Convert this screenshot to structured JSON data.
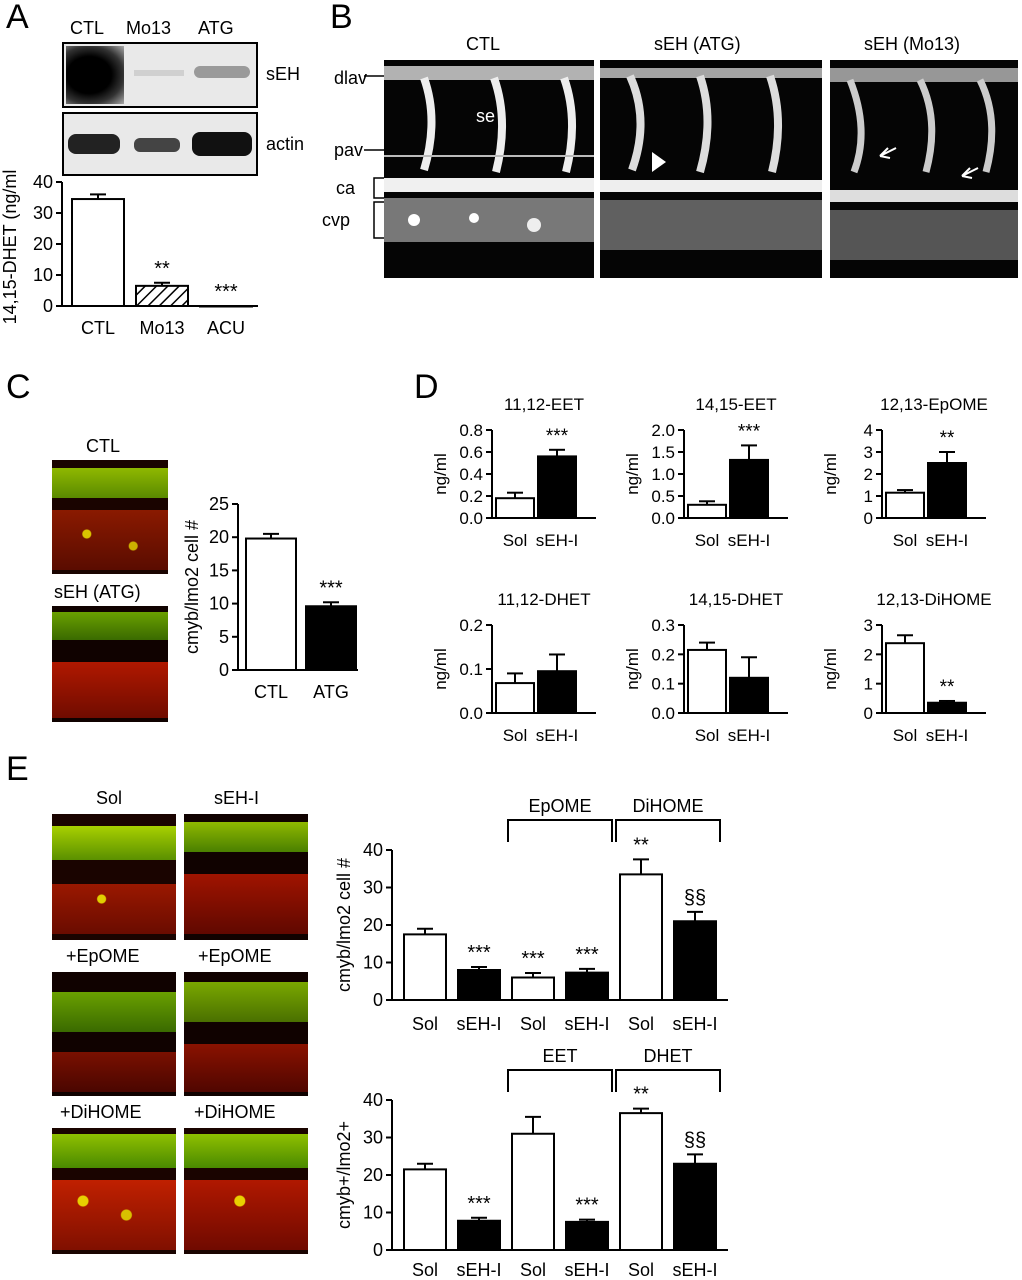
{
  "panels": {
    "a": "A",
    "b": "B",
    "c": "C",
    "d": "D",
    "e": "E"
  },
  "panelA": {
    "lanes": [
      "CTL",
      "Mo13",
      "ATG"
    ],
    "bands": [
      "sEH",
      "actin"
    ],
    "chart": {
      "categories": [
        "CTL",
        "Mo13",
        "ACU"
      ],
      "values": [
        34.5,
        6.5,
        0.0
      ],
      "errors": [
        1.5,
        1.0,
        0
      ],
      "sig": [
        "",
        "**",
        "***"
      ],
      "ylabel": "14,15-DHET (ng/ml)",
      "ylim": [
        0,
        40
      ],
      "ticks": [
        0,
        10,
        20,
        30,
        40
      ]
    }
  },
  "panelB": {
    "titles": [
      "CTL",
      "sEH (ATG)",
      "sEH (Mo13)"
    ],
    "labels": [
      "dlav",
      "pav",
      "ca",
      "cvp"
    ],
    "inner": "se"
  },
  "panelC": {
    "images": [
      "CTL",
      "sEH (ATG)"
    ],
    "chart": {
      "categories": [
        "CTL",
        "ATG"
      ],
      "values": [
        19.8,
        9.6
      ],
      "errors": [
        0.7,
        0.6
      ],
      "fills": [
        "white",
        "black"
      ],
      "sig": [
        "",
        "***"
      ],
      "ylabel": "cmyb/lmo2 cell #",
      "ylim": [
        0,
        25
      ],
      "ticks": [
        0,
        5,
        10,
        15,
        20,
        25
      ]
    }
  },
  "panelE": {
    "images": [
      "Sol",
      "sEH-I",
      "+EpOME",
      "+EpOME",
      "+DiHOME",
      "+DiHOME"
    ]
  },
  "chart_data": [
    {
      "type": "bar",
      "id": "A",
      "title": "",
      "ylabel": "14,15-DHET (ng/ml)",
      "categories": [
        "CTL",
        "Mo13",
        "ACU"
      ],
      "values": [
        34.5,
        6.5,
        0.0
      ],
      "ylim": [
        0,
        40
      ]
    },
    {
      "type": "bar",
      "id": "C",
      "ylabel": "cmyb/lmo2 cell #",
      "categories": [
        "CTL",
        "ATG"
      ],
      "values": [
        19.8,
        9.6
      ],
      "ylim": [
        0,
        25
      ]
    },
    {
      "type": "bar",
      "id": "D1",
      "title": "11,12-EET",
      "ylabel": "ng/ml",
      "categories": [
        "Sol",
        "sEH-I"
      ],
      "values": [
        0.18,
        0.56
      ],
      "errors": [
        0.05,
        0.06
      ],
      "fills": [
        "white",
        "black"
      ],
      "sig": [
        "",
        "***"
      ],
      "ylim": [
        0,
        0.8
      ],
      "ticks": [
        "0.0",
        "0.2",
        "0.4",
        "0.6",
        "0.8"
      ]
    },
    {
      "type": "bar",
      "id": "D2",
      "title": "14,15-EET",
      "ylabel": "ng/ml",
      "categories": [
        "Sol",
        "sEH-I"
      ],
      "values": [
        0.3,
        1.32
      ],
      "errors": [
        0.08,
        0.33
      ],
      "fills": [
        "white",
        "black"
      ],
      "sig": [
        "",
        "***"
      ],
      "ylim": [
        0,
        2.0
      ],
      "ticks": [
        "0.0",
        "0.5",
        "1.0",
        "1.5",
        "2.0"
      ]
    },
    {
      "type": "bar",
      "id": "D3",
      "title": "12,13-EpOME",
      "ylabel": "ng/ml",
      "categories": [
        "Sol",
        "sEH-I"
      ],
      "values": [
        1.15,
        2.5
      ],
      "errors": [
        0.12,
        0.5
      ],
      "fills": [
        "white",
        "black"
      ],
      "sig": [
        "",
        "**"
      ],
      "ylim": [
        0,
        4
      ],
      "ticks": [
        "0",
        "1",
        "2",
        "3",
        "4"
      ]
    },
    {
      "type": "bar",
      "id": "D4",
      "title": "11,12-DHET",
      "ylabel": "ng/ml",
      "categories": [
        "Sol",
        "sEH-I"
      ],
      "values": [
        0.068,
        0.095
      ],
      "errors": [
        0.022,
        0.038
      ],
      "fills": [
        "white",
        "black"
      ],
      "sig": [
        "",
        ""
      ],
      "ylim": [
        0,
        0.2
      ],
      "ticks": [
        "0.0",
        "0.1",
        "0.2"
      ]
    },
    {
      "type": "bar",
      "id": "D5",
      "title": "14,15-DHET",
      "ylabel": "ng/ml",
      "categories": [
        "Sol",
        "sEH-I"
      ],
      "values": [
        0.215,
        0.12
      ],
      "errors": [
        0.025,
        0.07
      ],
      "fills": [
        "white",
        "black"
      ],
      "sig": [
        "",
        ""
      ],
      "ylim": [
        0,
        0.3
      ],
      "ticks": [
        "0.0",
        "0.1",
        "0.2",
        "0.3"
      ]
    },
    {
      "type": "bar",
      "id": "D6",
      "title": "12,13-DiHOME",
      "ylabel": "ng/ml",
      "categories": [
        "Sol",
        "sEH-I"
      ],
      "values": [
        2.38,
        0.35
      ],
      "errors": [
        0.27,
        0.06
      ],
      "fills": [
        "white",
        "black"
      ],
      "sig": [
        "",
        "**"
      ],
      "ylim": [
        0,
        3
      ],
      "ticks": [
        "0",
        "1",
        "2",
        "3"
      ]
    },
    {
      "type": "bar",
      "id": "E1",
      "ylabel": "cmyb/lmo2 cell #",
      "categories": [
        "Sol",
        "sEH-I",
        "Sol",
        "sEH-I",
        "Sol",
        "sEH-I"
      ],
      "values": [
        17.5,
        8.0,
        6.0,
        7.3,
        33.5,
        21.0
      ],
      "errors": [
        1.5,
        0.8,
        1.2,
        1.0,
        4.0,
        2.5
      ],
      "fills": [
        "white",
        "black",
        "white",
        "black",
        "white",
        "black"
      ],
      "sig": [
        "",
        "***",
        "***",
        "***",
        "**",
        "§§"
      ],
      "brackets": [
        {
          "label": "EpOME",
          "from": 2,
          "to": 3
        },
        {
          "label": "DiHOME",
          "from": 4,
          "to": 5
        }
      ],
      "ylim": [
        0,
        40
      ],
      "ticks": [
        0,
        10,
        20,
        30,
        40
      ]
    },
    {
      "type": "bar",
      "id": "E2",
      "ylabel": "cmyb+/lmo2+",
      "categories": [
        "Sol",
        "sEH-I",
        "Sol",
        "sEH-I",
        "Sol",
        "sEH-I"
      ],
      "values": [
        21.5,
        7.8,
        31.0,
        7.5,
        36.5,
        23.0
      ],
      "errors": [
        1.5,
        0.8,
        4.5,
        0.6,
        1.2,
        2.5
      ],
      "fills": [
        "white",
        "black",
        "white",
        "black",
        "white",
        "black"
      ],
      "sig": [
        "",
        "***",
        "",
        "***",
        "**",
        "§§"
      ],
      "brackets": [
        {
          "label": "EET",
          "from": 2,
          "to": 3
        },
        {
          "label": "DHET",
          "from": 4,
          "to": 5
        }
      ],
      "ylim": [
        0,
        40
      ],
      "ticks": [
        0,
        10,
        20,
        30,
        40
      ]
    }
  ]
}
